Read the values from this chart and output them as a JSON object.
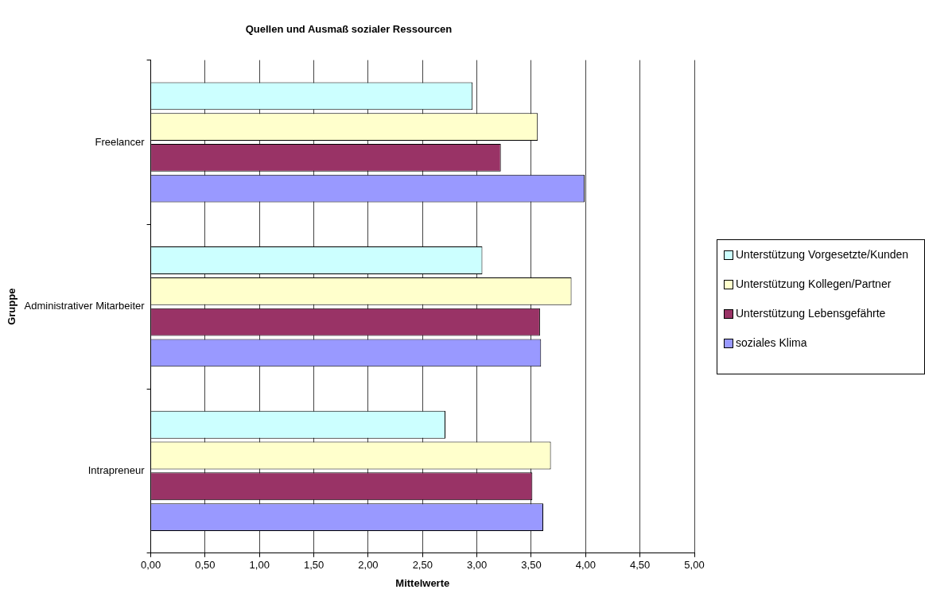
{
  "chart_data": {
    "type": "bar",
    "orientation": "horizontal",
    "title": "Quellen und Ausmaß sozialer Ressourcen",
    "xlabel": "Mittelwerte",
    "ylabel": "Gruppe",
    "categories": [
      "Freelancer",
      "Administrativer Mitarbeiter",
      "Intrapreneur"
    ],
    "series": [
      {
        "name": "Unterstützung Vorgesetzte/Kunden",
        "color": "#ccffff",
        "values": [
          2.96,
          3.05,
          2.71
        ]
      },
      {
        "name": "Unterstützung Kollegen/Partner",
        "color": "#ffffcc",
        "values": [
          3.56,
          3.87,
          3.68
        ]
      },
      {
        "name": "Unterstützung Lebensgefährte",
        "color": "#993366",
        "values": [
          3.22,
          3.58,
          3.51
        ]
      },
      {
        "name": "soziales Klima",
        "color": "#9999ff",
        "values": [
          3.99,
          3.59,
          3.61
        ]
      }
    ],
    "xlim": [
      0,
      5
    ],
    "xticks": [
      {
        "value": 0,
        "label": "0,00"
      },
      {
        "value": 0.5,
        "label": "0,50"
      },
      {
        "value": 1,
        "label": "1,00"
      },
      {
        "value": 1.5,
        "label": "1,50"
      },
      {
        "value": 2,
        "label": "2,00"
      },
      {
        "value": 2.5,
        "label": "2,50"
      },
      {
        "value": 3,
        "label": "3,00"
      },
      {
        "value": 3.5,
        "label": "3,50"
      },
      {
        "value": 4,
        "label": "4,00"
      },
      {
        "value": 4.5,
        "label": "4,50"
      },
      {
        "value": 5,
        "label": "5,00"
      }
    ],
    "grid": "x",
    "legend": "right"
  }
}
